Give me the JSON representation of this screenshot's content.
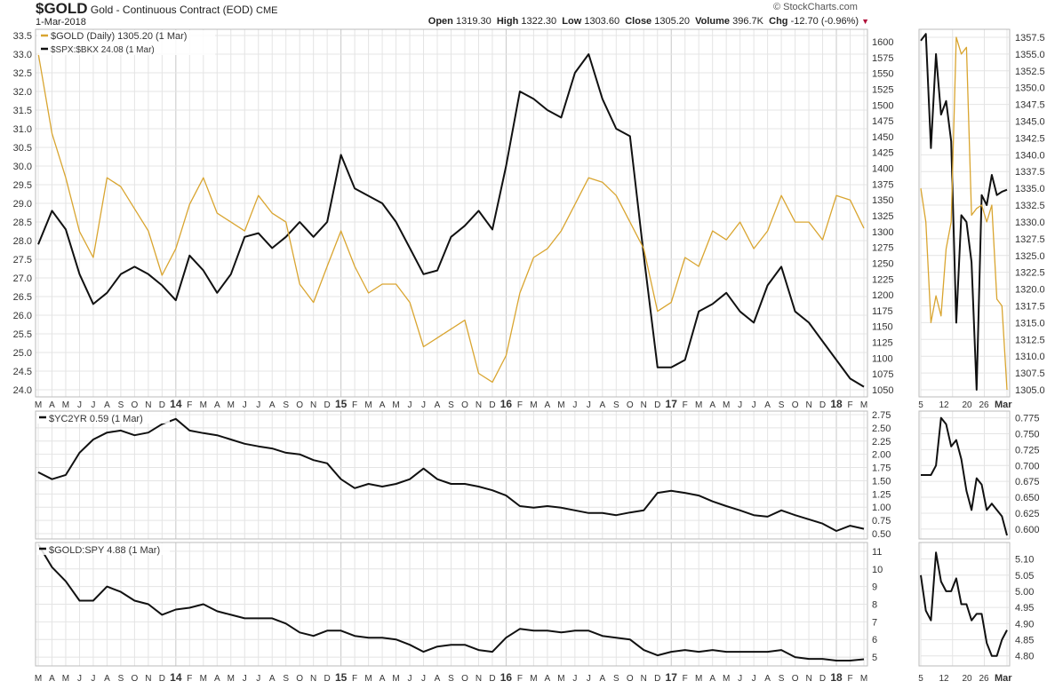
{
  "header": {
    "symbol": "$GOLD",
    "title": "Gold - Continuous Contract (EOD)",
    "exchange": "CME",
    "date": "1-Mar-2018",
    "watermark": "© StockCharts.com",
    "open_label": "Open",
    "open": "1319.30",
    "high_label": "High",
    "high": "1322.30",
    "low_label": "Low",
    "low": "1303.60",
    "close_label": "Close",
    "close": "1305.20",
    "volume_label": "Volume",
    "volume": "396.7K",
    "chg_label": "Chg",
    "chg": "-12.70 (-0.96%)",
    "chg_icon": "down-triangle-icon"
  },
  "colors": {
    "gold": "#d9a530",
    "black": "#111111",
    "grid": "#e4e4e4",
    "year_grid": "#c8c8c8",
    "down": "#b0103a"
  },
  "chart_data": [
    {
      "type": "line",
      "panel": "price",
      "legend": [
        "$GOLD (Daily) 1305.20 (1 Mar)",
        "$SPX:$BKX 24.08 (1 Mar)"
      ],
      "legend_placement": "top-left",
      "grid": true,
      "x_labels": [
        "M",
        "A",
        "M",
        "J",
        "J",
        "A",
        "S",
        "O",
        "N",
        "D",
        "14",
        "F",
        "M",
        "A",
        "M",
        "J",
        "J",
        "A",
        "S",
        "O",
        "N",
        "D",
        "15",
        "F",
        "M",
        "A",
        "M",
        "J",
        "J",
        "A",
        "S",
        "O",
        "N",
        "D",
        "16",
        "F",
        "M",
        "A",
        "M",
        "J",
        "J",
        "A",
        "S",
        "O",
        "N",
        "D",
        "17",
        "F",
        "M",
        "A",
        "M",
        "J",
        "J",
        "A",
        "S",
        "O",
        "N",
        "D",
        "18",
        "F",
        "M"
      ],
      "left_axis": {
        "ylim": [
          24.0,
          33.5
        ],
        "ticks": [
          "33.5",
          "33.0",
          "32.5",
          "32.0",
          "31.5",
          "31.0",
          "30.5",
          "30.0",
          "29.5",
          "29.0",
          "28.5",
          "28.0",
          "27.5",
          "27.0",
          "26.5",
          "26.0",
          "25.5",
          "25.0",
          "24.5",
          "24.0"
        ]
      },
      "right_axis": {
        "ylim": [
          1050,
          1600
        ],
        "ticks": [
          "1600",
          "1575",
          "1550",
          "1525",
          "1500",
          "1475",
          "1450",
          "1425",
          "1400",
          "1375",
          "1350",
          "1325",
          "1300",
          "1275",
          "1250",
          "1225",
          "1200",
          "1175",
          "1150",
          "1125",
          "1100",
          "1075",
          "1050"
        ]
      },
      "series": [
        {
          "name": "$SPX:$BKX",
          "axis": "left",
          "color": "#111111",
          "values": [
            27.9,
            28.8,
            28.3,
            27.1,
            26.3,
            26.6,
            27.1,
            27.3,
            27.1,
            26.8,
            26.4,
            27.6,
            27.2,
            26.6,
            27.1,
            28.1,
            28.2,
            27.8,
            28.1,
            28.5,
            28.1,
            28.5,
            30.3,
            29.4,
            29.2,
            29.0,
            28.5,
            27.8,
            27.1,
            27.2,
            28.1,
            28.4,
            28.8,
            28.3,
            30.0,
            32.0,
            31.8,
            31.5,
            31.3,
            32.5,
            33.0,
            31.8,
            31.0,
            30.8,
            27.6,
            24.6,
            24.6,
            24.8,
            26.1,
            26.3,
            26.6,
            26.1,
            25.8,
            26.8,
            27.3,
            26.1,
            25.8,
            25.3,
            24.8,
            24.3,
            24.08
          ]
        },
        {
          "name": "$GOLD",
          "axis": "right",
          "color": "#d9a530",
          "values": [
            1582,
            1455,
            1385,
            1300,
            1259,
            1385,
            1371,
            1336,
            1301,
            1231,
            1273,
            1343,
            1385,
            1329,
            1315,
            1301,
            1357,
            1329,
            1315,
            1217,
            1188,
            1245,
            1301,
            1245,
            1203,
            1217,
            1217,
            1188,
            1118,
            1132,
            1146,
            1160,
            1076,
            1062,
            1104,
            1203,
            1259,
            1273,
            1301,
            1343,
            1385,
            1378,
            1357,
            1315,
            1273,
            1174,
            1188,
            1259,
            1245,
            1301,
            1287,
            1315,
            1273,
            1301,
            1357,
            1315,
            1315,
            1287,
            1357,
            1350,
            1305.2
          ]
        }
      ],
      "inset": {
        "x_labels": [
          "5",
          "12",
          "20",
          "26",
          "Mar"
        ],
        "ylim": [
          1305,
          1357.5
        ],
        "ticks": [
          "1357.5",
          "1355.0",
          "1352.5",
          "1350.0",
          "1347.5",
          "1345.0",
          "1342.5",
          "1340.0",
          "1337.5",
          "1335.0",
          "1332.5",
          "1330.0",
          "1327.5",
          "1325.0",
          "1322.5",
          "1320.0",
          "1317.5",
          "1315.0",
          "1312.5",
          "1310.0",
          "1307.5",
          "1305.0"
        ],
        "series": [
          {
            "name": "$SPX:$BKX",
            "color": "#111111",
            "values": [
              1357,
              1358,
              1341,
              1355,
              1346,
              1348,
              1342,
              1315,
              1331,
              1330,
              1324,
              1305,
              1334,
              1332.5,
              1337,
              1334,
              1334.5,
              1334.8
            ]
          },
          {
            "name": "$GOLD",
            "color": "#d9a530",
            "values": [
              1335,
              1330,
              1315,
              1319,
              1316,
              1326,
              1330,
              1357.5,
              1355,
              1356,
              1331,
              1332,
              1332.5,
              1330,
              1332.5,
              1318.5,
              1317.5,
              1305
            ]
          }
        ]
      }
    },
    {
      "type": "line",
      "panel": "yc2yr",
      "legend": [
        "$YC2YR 0.59 (1 Mar)"
      ],
      "legend_placement": "top-left",
      "grid": true,
      "right_axis": {
        "ylim": [
          0.5,
          2.75
        ],
        "ticks": [
          "2.75",
          "2.50",
          "2.25",
          "2.00",
          "1.75",
          "1.50",
          "1.25",
          "1.00",
          "0.75",
          "0.50"
        ]
      },
      "series": [
        {
          "name": "$YC2YR",
          "color": "#111111",
          "values": [
            1.66,
            1.53,
            1.61,
            2.03,
            2.28,
            2.41,
            2.45,
            2.36,
            2.41,
            2.57,
            2.67,
            2.45,
            2.4,
            2.36,
            2.28,
            2.2,
            2.15,
            2.11,
            2.03,
            2.0,
            1.89,
            1.83,
            1.53,
            1.36,
            1.44,
            1.39,
            1.44,
            1.53,
            1.73,
            1.53,
            1.44,
            1.44,
            1.39,
            1.32,
            1.22,
            1.02,
            0.99,
            1.02,
            0.99,
            0.94,
            0.89,
            0.89,
            0.85,
            0.9,
            0.94,
            1.27,
            1.31,
            1.27,
            1.22,
            1.11,
            1.02,
            0.94,
            0.85,
            0.82,
            0.94,
            0.85,
            0.77,
            0.69,
            0.55,
            0.65,
            0.59
          ]
        }
      ],
      "inset": {
        "ylim": [
          0.59,
          0.78
        ],
        "ticks": [
          "0.775",
          "0.750",
          "0.725",
          "0.700",
          "0.675",
          "0.650",
          "0.625",
          "0.600"
        ],
        "values": [
          0.685,
          0.685,
          0.685,
          0.7,
          0.775,
          0.765,
          0.73,
          0.74,
          0.71,
          0.66,
          0.63,
          0.68,
          0.67,
          0.63,
          0.64,
          0.63,
          0.62,
          0.59
        ]
      }
    },
    {
      "type": "line",
      "panel": "gold-spy",
      "legend": [
        "$GOLD:SPY 4.88 (1 Mar)"
      ],
      "legend_placement": "top-left",
      "grid": true,
      "x_labels": [
        "M",
        "A",
        "M",
        "J",
        "J",
        "A",
        "S",
        "O",
        "N",
        "D",
        "14",
        "F",
        "M",
        "A",
        "M",
        "J",
        "J",
        "A",
        "S",
        "O",
        "N",
        "D",
        "15",
        "F",
        "M",
        "A",
        "M",
        "J",
        "J",
        "A",
        "S",
        "O",
        "N",
        "D",
        "16",
        "F",
        "M",
        "A",
        "M",
        "J",
        "J",
        "A",
        "S",
        "O",
        "N",
        "D",
        "17",
        "F",
        "M",
        "A",
        "M",
        "J",
        "J",
        "A",
        "S",
        "O",
        "N",
        "D",
        "18",
        "F",
        "M"
      ],
      "right_axis": {
        "ylim": [
          4.5,
          11.5
        ],
        "ticks": [
          "11",
          "10",
          "9",
          "8",
          "7",
          "6",
          "5"
        ]
      },
      "series": [
        {
          "name": "$GOLD:SPY",
          "color": "#111111",
          "values": [
            11.4,
            10.1,
            9.3,
            8.2,
            8.2,
            9.0,
            8.7,
            8.2,
            8.0,
            7.4,
            7.7,
            7.8,
            8.0,
            7.6,
            7.4,
            7.2,
            7.2,
            7.2,
            6.9,
            6.4,
            6.2,
            6.5,
            6.5,
            6.2,
            6.1,
            6.1,
            6.0,
            5.7,
            5.3,
            5.6,
            5.7,
            5.7,
            5.4,
            5.3,
            6.1,
            6.6,
            6.5,
            6.5,
            6.4,
            6.5,
            6.5,
            6.2,
            6.1,
            6.0,
            5.4,
            5.1,
            5.3,
            5.4,
            5.3,
            5.4,
            5.3,
            5.3,
            5.3,
            5.3,
            5.4,
            5.0,
            4.9,
            4.9,
            4.8,
            4.8,
            4.88
          ]
        }
      ],
      "inset": {
        "x_labels": [
          "5",
          "12",
          "20",
          "26",
          "Mar"
        ],
        "ylim": [
          4.78,
          5.14
        ],
        "ticks": [
          "5.10",
          "5.05",
          "5.00",
          "4.95",
          "4.90",
          "4.85",
          "4.80"
        ],
        "values": [
          5.05,
          4.94,
          4.91,
          5.12,
          5.03,
          5.0,
          5.0,
          5.04,
          4.96,
          4.96,
          4.91,
          4.93,
          4.93,
          4.84,
          4.8,
          4.8,
          4.85,
          4.88
        ]
      }
    }
  ]
}
